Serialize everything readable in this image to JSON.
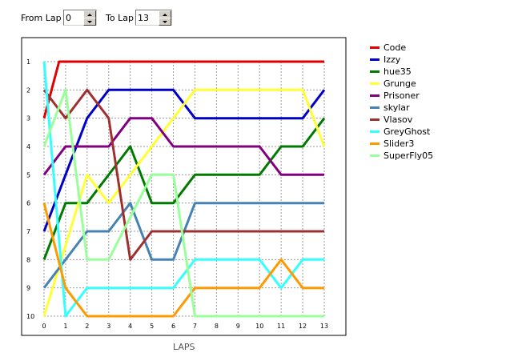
{
  "controls": {
    "from_label": "From Lap",
    "from_value": "0",
    "to_label": "To Lap",
    "to_value": "13"
  },
  "chart_data": {
    "type": "line",
    "xlabel": "LAPS",
    "x": [
      0,
      1,
      2,
      3,
      4,
      5,
      6,
      7,
      8,
      9,
      10,
      11,
      12,
      13
    ],
    "x_ticks": [
      "0",
      "1",
      "2",
      "3",
      "4",
      "5",
      "6",
      "7",
      "8",
      "9",
      "10",
      "11",
      "12",
      "13"
    ],
    "y_ticks": [
      "1",
      "2",
      "3",
      "4",
      "5",
      "6",
      "7",
      "8",
      "9",
      "10"
    ],
    "xlim": [
      0,
      13
    ],
    "ylim": [
      10,
      1
    ],
    "grid": true,
    "legend_position": "right",
    "series": [
      {
        "name": "Code",
        "color": "#e00000",
        "points": [
          [
            0,
            3
          ],
          [
            0.7,
            1
          ],
          [
            13,
            1
          ]
        ]
      },
      {
        "name": "Izzy",
        "color": "#0000c8",
        "points": [
          [
            0,
            7
          ],
          [
            2,
            3
          ],
          [
            3,
            2
          ],
          [
            6,
            2
          ],
          [
            7,
            3
          ],
          [
            12,
            3
          ],
          [
            13,
            2
          ]
        ]
      },
      {
        "name": "hue35",
        "color": "#007a00",
        "points": [
          [
            0,
            8
          ],
          [
            1,
            6
          ],
          [
            2,
            6
          ],
          [
            4,
            4
          ],
          [
            5,
            6
          ],
          [
            6,
            6
          ],
          [
            7,
            5
          ],
          [
            10,
            5
          ],
          [
            11,
            4
          ],
          [
            12,
            4
          ],
          [
            13,
            3
          ]
        ]
      },
      {
        "name": "Grunge",
        "color": "#ffff33",
        "points": [
          [
            0,
            10
          ],
          [
            2,
            5
          ],
          [
            3,
            6
          ],
          [
            7,
            2
          ],
          [
            12,
            2
          ],
          [
            13,
            4
          ]
        ]
      },
      {
        "name": "Prisoner",
        "color": "#800080",
        "points": [
          [
            0,
            5
          ],
          [
            1,
            4
          ],
          [
            3,
            4
          ],
          [
            4,
            3
          ],
          [
            5,
            3
          ],
          [
            6,
            4
          ],
          [
            10,
            4
          ],
          [
            11,
            5
          ],
          [
            13,
            5
          ]
        ]
      },
      {
        "name": "skylar",
        "color": "#4682b4",
        "points": [
          [
            0,
            9
          ],
          [
            2,
            7
          ],
          [
            3,
            7
          ],
          [
            4,
            6
          ],
          [
            5,
            8
          ],
          [
            6,
            8
          ],
          [
            7,
            6
          ],
          [
            13,
            6
          ]
        ]
      },
      {
        "name": "Vlasov",
        "color": "#a03030",
        "points": [
          [
            0,
            2
          ],
          [
            1,
            3
          ],
          [
            2,
            2
          ],
          [
            3,
            3
          ],
          [
            4,
            8
          ],
          [
            5,
            7
          ],
          [
            13,
            7
          ]
        ]
      },
      {
        "name": "GreyGhost",
        "color": "#33ffff",
        "points": [
          [
            0,
            1
          ],
          [
            1,
            10
          ],
          [
            2,
            9
          ],
          [
            6,
            9
          ],
          [
            7,
            8
          ],
          [
            10,
            8
          ],
          [
            11,
            9
          ],
          [
            12,
            8
          ],
          [
            13,
            8
          ]
        ]
      },
      {
        "name": "Slider3",
        "color": "#ff9900",
        "points": [
          [
            0,
            6
          ],
          [
            1,
            9
          ],
          [
            2,
            10
          ],
          [
            6,
            10
          ],
          [
            7,
            9
          ],
          [
            10,
            9
          ],
          [
            11,
            8
          ],
          [
            12,
            9
          ],
          [
            13,
            9
          ]
        ]
      },
      {
        "name": "SuperFly05",
        "color": "#99ff99",
        "points": [
          [
            0,
            4
          ],
          [
            1,
            2
          ],
          [
            2,
            8
          ],
          [
            3,
            8
          ],
          [
            5,
            5
          ],
          [
            6,
            5
          ],
          [
            7,
            10
          ],
          [
            13,
            10
          ]
        ]
      }
    ]
  }
}
